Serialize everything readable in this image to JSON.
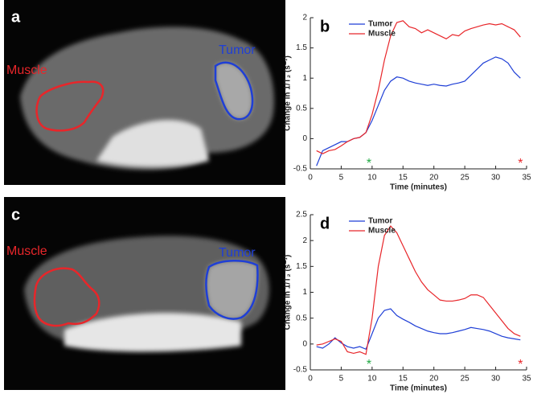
{
  "images": [
    {
      "panel": "a",
      "labels": [
        "Muscle",
        "Tumor"
      ]
    },
    {
      "panel": "c",
      "labels": [
        "Muscle",
        "Tumor"
      ]
    }
  ],
  "chart_data": [
    {
      "type": "line",
      "panel": "b",
      "x_label": "Time (minutes)",
      "y_label": "Change in 1/T₂ (s⁻¹)",
      "x": [
        1,
        2,
        3,
        4,
        5,
        6,
        7,
        8,
        9,
        10,
        11,
        12,
        13,
        14,
        15,
        16,
        17,
        18,
        19,
        20,
        21,
        22,
        23,
        24,
        25,
        26,
        27,
        28,
        29,
        30,
        31,
        32,
        33,
        34
      ],
      "series": [
        {
          "name": "Tumor",
          "color": "#1f3fd6",
          "values": [
            -0.45,
            -0.2,
            -0.15,
            -0.1,
            -0.05,
            -0.05,
            0,
            0.02,
            0.1,
            0.3,
            0.55,
            0.8,
            0.95,
            1.02,
            1.0,
            0.95,
            0.92,
            0.9,
            0.88,
            0.9,
            0.88,
            0.87,
            0.9,
            0.92,
            0.95,
            1.05,
            1.15,
            1.25,
            1.3,
            1.35,
            1.32,
            1.25,
            1.1,
            1.0
          ]
        },
        {
          "name": "Muscle",
          "color": "#e8262a",
          "values": [
            -0.2,
            -0.25,
            -0.2,
            -0.18,
            -0.12,
            -0.05,
            0,
            0.02,
            0.1,
            0.4,
            0.8,
            1.3,
            1.7,
            1.92,
            1.95,
            1.85,
            1.82,
            1.75,
            1.8,
            1.75,
            1.7,
            1.65,
            1.72,
            1.7,
            1.78,
            1.82,
            1.85,
            1.88,
            1.9,
            1.88,
            1.9,
            1.85,
            1.8,
            1.68
          ]
        }
      ],
      "markers": [
        {
          "text": "*",
          "x": 9.5,
          "color": "#22aa44"
        },
        {
          "text": "*",
          "x": 34,
          "color": "#e8262a"
        }
      ],
      "xlim": [
        0,
        35
      ],
      "xticks": [
        0,
        5,
        10,
        15,
        20,
        25,
        30,
        35
      ],
      "ylim": [
        -0.5,
        2
      ],
      "yticks": [
        -0.5,
        0,
        0.5,
        1,
        1.5,
        2
      ],
      "legend": "upper left"
    },
    {
      "type": "line",
      "panel": "d",
      "x_label": "Time (minutes)",
      "y_label": "Change in 1/T₂ (s⁻¹)",
      "x": [
        1,
        2,
        3,
        4,
        5,
        6,
        7,
        8,
        9,
        10,
        11,
        12,
        13,
        14,
        15,
        16,
        17,
        18,
        19,
        20,
        21,
        22,
        23,
        24,
        25,
        26,
        27,
        28,
        29,
        30,
        31,
        32,
        33,
        34
      ],
      "series": [
        {
          "name": "Tumor",
          "color": "#1f3fd6",
          "values": [
            -0.05,
            -0.08,
            0,
            0.12,
            0.02,
            -0.05,
            -0.08,
            -0.05,
            -0.1,
            0.2,
            0.5,
            0.65,
            0.68,
            0.55,
            0.48,
            0.42,
            0.35,
            0.3,
            0.25,
            0.22,
            0.2,
            0.2,
            0.22,
            0.25,
            0.28,
            0.32,
            0.3,
            0.28,
            0.25,
            0.2,
            0.15,
            0.12,
            0.1,
            0.08
          ]
        },
        {
          "name": "Muscle",
          "color": "#e8262a",
          "values": [
            -0.02,
            0,
            0.05,
            0.1,
            0.05,
            -0.15,
            -0.18,
            -0.15,
            -0.2,
            0.5,
            1.5,
            2.1,
            2.28,
            2.15,
            1.9,
            1.65,
            1.4,
            1.2,
            1.05,
            0.95,
            0.85,
            0.83,
            0.83,
            0.85,
            0.88,
            0.95,
            0.95,
            0.9,
            0.75,
            0.6,
            0.45,
            0.3,
            0.2,
            0.15
          ]
        }
      ],
      "markers": [
        {
          "text": "*",
          "x": 9.5,
          "color": "#22aa44"
        },
        {
          "text": "*",
          "x": 34,
          "color": "#e8262a"
        }
      ],
      "xlim": [
        0,
        35
      ],
      "xticks": [
        0,
        5,
        10,
        15,
        20,
        25,
        30,
        35
      ],
      "ylim": [
        -0.5,
        2.5
      ],
      "yticks": [
        -0.5,
        0,
        0.5,
        1,
        1.5,
        2,
        2.5
      ],
      "legend": "upper left"
    }
  ]
}
